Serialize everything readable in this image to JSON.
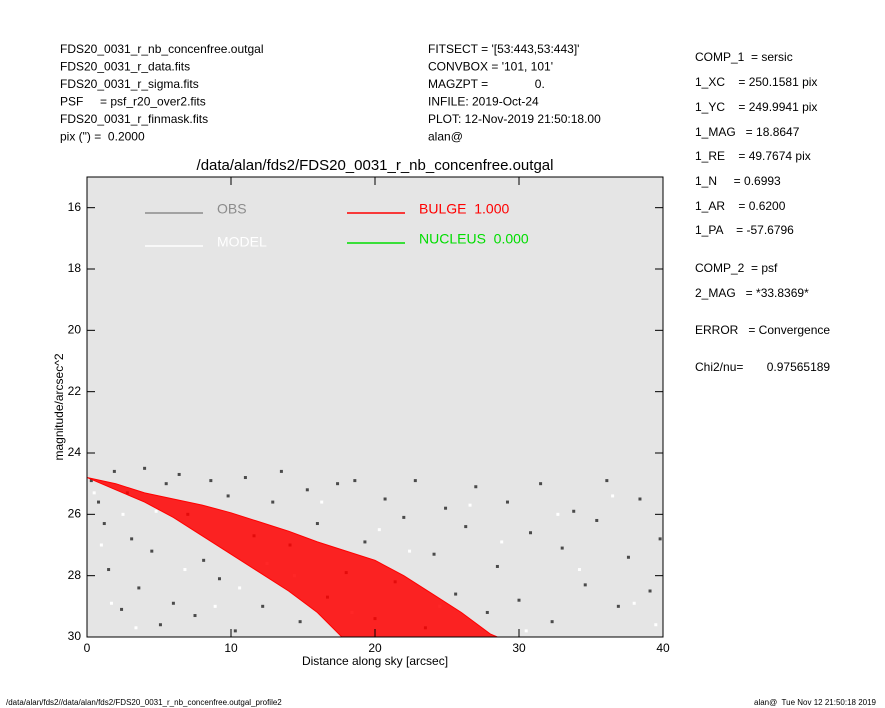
{
  "header": {
    "left": [
      "FDS20_0031_r_nb_concenfree.outgal",
      "FDS20_0031_r_data.fits",
      "FDS20_0031_r_sigma.fits",
      "PSF     = psf_r20_over2.fits",
      "FDS20_0031_r_finmask.fits",
      "pix (\") =  0.2000"
    ],
    "middle": [
      "FITSECT = '[53:443,53:443]'",
      "CONVBOX = '101, 101'",
      "MAGZPT =              0.",
      "INFILE: 2019-Oct-24",
      "PLOT: 12-Nov-2019 21:50:18.00",
      "alan@"
    ],
    "right": [
      "COMP_1  = sersic",
      "1_XC    = 250.1581 pix",
      "1_YC    = 249.9941 pix",
      "1_MAG   = 18.8647",
      "1_RE    = 49.7674 pix",
      "1_N     = 0.6993",
      "1_AR    = 0.6200",
      "1_PA    = -57.6796",
      "COMP_2  = psf",
      "2_MAG   = *33.8369*",
      "ERROR   = Convergence",
      "Chi2/nu=       0.97565189"
    ]
  },
  "chart_data": {
    "type": "scatter",
    "title": "/data/alan/fds2/FDS20_0031_r_nb_concenfree.outgal",
    "xlabel": "Distance along sky [arcsec]",
    "ylabel": "magnitude/arcsec^2",
    "xlim": [
      0,
      40
    ],
    "ylim": [
      30,
      15
    ],
    "xticks": [
      0,
      10,
      20,
      30,
      40
    ],
    "yticks": [
      16,
      18,
      20,
      22,
      24,
      26,
      28,
      30
    ],
    "background": "#e5e5e5",
    "series": [
      {
        "name": "OBS",
        "color": "#4a4a4a",
        "legend_color": "#8c8c8c",
        "type": "scatter",
        "x": [
          0.3,
          0.8,
          1.2,
          1.5,
          1.9,
          2.4,
          2.8,
          3.1,
          3.6,
          4.0,
          4.5,
          5.1,
          5.5,
          6.0,
          6.4,
          7.0,
          7.5,
          8.1,
          8.6,
          9.2,
          9.8,
          10.3,
          11.0,
          11.6,
          12.2,
          12.9,
          13.5,
          14.1,
          14.8,
          15.3,
          16.0,
          16.7,
          17.4,
          18.0,
          18.6,
          19.3,
          20.0,
          20.7,
          21.4,
          22.0,
          22.8,
          23.5,
          24.1,
          24.9,
          25.6,
          26.3,
          27.0,
          27.8,
          28.5,
          29.2,
          30.0,
          30.8,
          31.5,
          32.3,
          33.0,
          33.8,
          34.6,
          35.4,
          36.1,
          36.9,
          37.6,
          38.4,
          39.1,
          39.8
        ],
        "values": [
          24.9,
          25.6,
          26.3,
          27.8,
          24.6,
          29.1,
          25.3,
          26.8,
          28.4,
          24.5,
          27.2,
          29.6,
          25.0,
          28.9,
          24.7,
          26.0,
          29.3,
          27.5,
          24.9,
          28.1,
          25.4,
          29.8,
          24.8,
          26.7,
          29.0,
          25.6,
          24.6,
          27.0,
          29.5,
          25.2,
          26.3,
          28.7,
          25.0,
          27.9,
          24.9,
          26.9,
          29.4,
          25.5,
          28.2,
          26.1,
          24.9,
          29.7,
          27.3,
          25.8,
          28.6,
          26.4,
          25.1,
          29.2,
          27.7,
          25.6,
          28.8,
          26.6,
          25.0,
          29.5,
          27.1,
          25.9,
          28.3,
          26.2,
          24.9,
          29.0,
          27.4,
          25.5,
          28.5,
          26.8
        ]
      },
      {
        "name": "MODEL",
        "color": "#ffffff",
        "type": "scatter",
        "x": [
          0.5,
          1.0,
          1.7,
          2.5,
          3.4,
          4.8,
          6.8,
          8.9,
          10.6,
          12.5,
          14.4,
          16.3,
          18.4,
          20.3,
          22.4,
          24.5,
          26.6,
          28.8,
          30.5,
          32.7,
          34.2,
          36.5,
          38.0,
          39.5
        ],
        "values": [
          25.3,
          27.0,
          28.9,
          26.0,
          29.7,
          25.9,
          27.8,
          29.0,
          28.4,
          27.6,
          28.0,
          25.6,
          29.2,
          26.5,
          27.2,
          29.0,
          25.7,
          26.9,
          29.8,
          26.0,
          27.8,
          25.4,
          28.9,
          29.6
        ]
      },
      {
        "name": "BULGE  1.000",
        "color": "#ff0000",
        "type": "band",
        "x": [
          0,
          2,
          4,
          6,
          8,
          10,
          12,
          14,
          16,
          18,
          20,
          22,
          24,
          26,
          28,
          28.5,
          17.7,
          16,
          14,
          12,
          10,
          8,
          6,
          4,
          2
        ],
        "values": [
          24.8,
          25.0,
          25.3,
          25.5,
          25.7,
          25.95,
          26.25,
          26.55,
          26.9,
          27.2,
          27.5,
          28.0,
          28.6,
          29.2,
          29.9,
          30,
          30,
          29.2,
          28.5,
          27.9,
          27.3,
          26.7,
          26.1,
          25.6,
          25.2
        ]
      },
      {
        "name": "NUCLEUS  0.000",
        "color": "#00dd00",
        "type": "none"
      }
    ]
  },
  "footer": {
    "left": "/data/alan/fds2//data/alan/fds2/FDS20_0031_r_nb_concenfree.outgal_profile2",
    "right": "alan@  Tue Nov 12 21:50:18 2019"
  }
}
